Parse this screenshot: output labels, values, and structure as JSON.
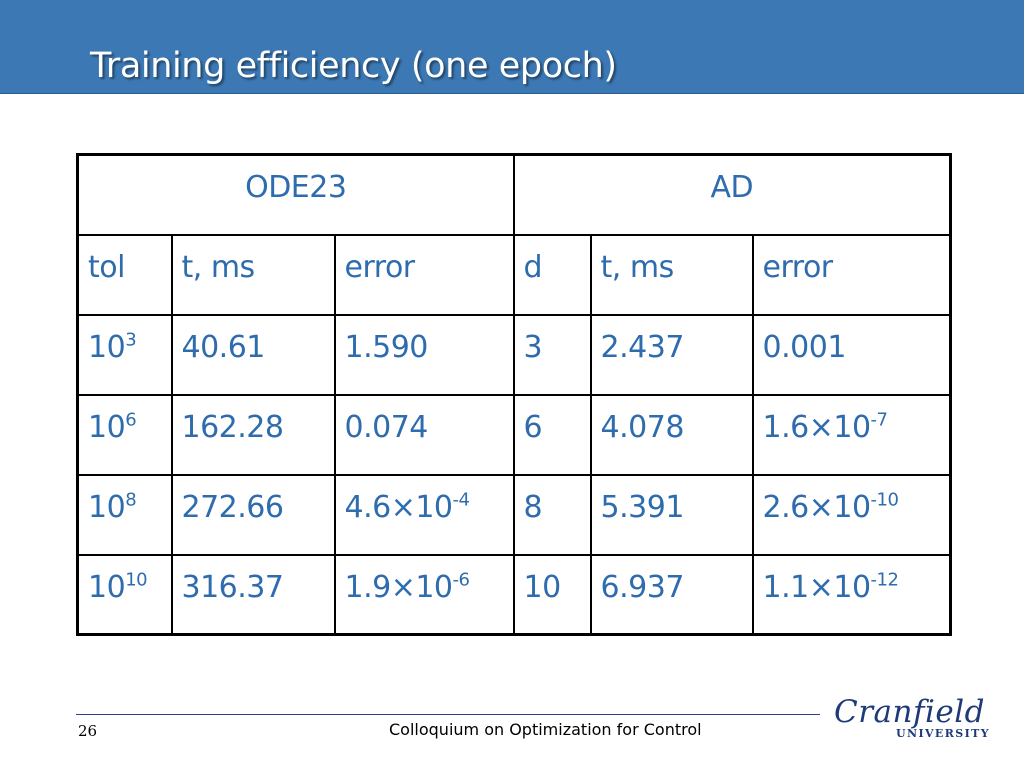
{
  "slide": {
    "title": "Training efficiency (one epoch)",
    "page_number": "26",
    "footer_text": "Colloquium on Optimization for Control",
    "logo": {
      "name": "Cranfield",
      "subtitle": "UNIVERSITY"
    }
  },
  "colors": {
    "title_bar": "#3c78b4",
    "title_text": "#ffffff",
    "table_text": "#2e6cae",
    "table_border": "#000000",
    "footer_line": "#2e3f8f",
    "logo": "#1f3a78"
  },
  "table": {
    "groups": [
      "ODE23",
      "AD"
    ],
    "headers": [
      "tol",
      "t, ms",
      "error",
      "d",
      "t, ms",
      "error"
    ],
    "rows": [
      {
        "tol_base": "10",
        "tol_exp": "3",
        "t_ode": "40.61",
        "err_ode_base": "1.590",
        "err_ode_exp": "",
        "d": "3",
        "t_ad": "2.437",
        "err_ad_base": "0.001",
        "err_ad_exp": ""
      },
      {
        "tol_base": "10",
        "tol_exp": "6",
        "t_ode": "162.28",
        "err_ode_base": "0.074",
        "err_ode_exp": "",
        "d": "6",
        "t_ad": "4.078",
        "err_ad_base": "1.6×10",
        "err_ad_exp": "-7"
      },
      {
        "tol_base": "10",
        "tol_exp": "8",
        "t_ode": "272.66",
        "err_ode_base": "4.6×10",
        "err_ode_exp": "-4",
        "d": "8",
        "t_ad": "5.391",
        "err_ad_base": "2.6×10",
        "err_ad_exp": "-10"
      },
      {
        "tol_base": "10",
        "tol_exp": "10",
        "t_ode": "316.37",
        "err_ode_base": "1.9×10",
        "err_ode_exp": "-6",
        "d": "10",
        "t_ad": "6.937",
        "err_ad_base": "1.1×10",
        "err_ad_exp": "-12"
      }
    ]
  }
}
